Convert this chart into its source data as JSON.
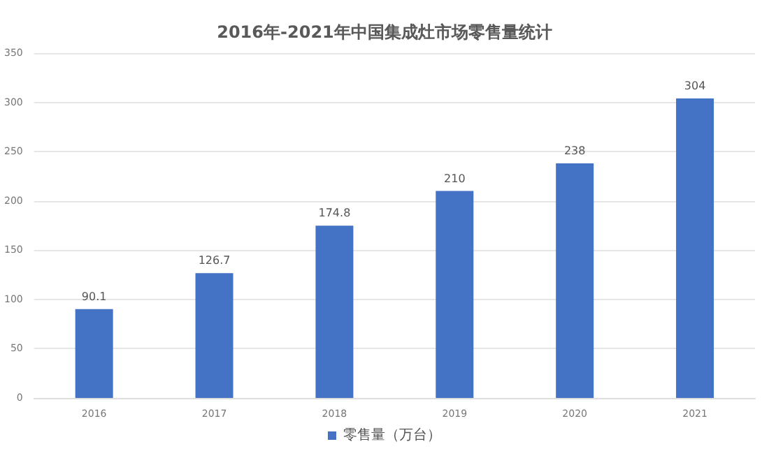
{
  "chart_data": {
    "type": "bar",
    "title": "2016年-2021年中国集成灶市场零售量统计",
    "categories": [
      "2016",
      "2017",
      "2018",
      "2019",
      "2020",
      "2021"
    ],
    "series": [
      {
        "name": "零售量（万台）",
        "color": "#4472c4",
        "values": [
          90.1,
          126.7,
          174.8,
          210,
          238,
          304
        ]
      }
    ],
    "ylim": [
      0,
      350
    ],
    "yticks": [
      0,
      50,
      100,
      150,
      200,
      250,
      300,
      350
    ],
    "grid": "y",
    "legend": "bottom",
    "data_labels": true
  }
}
